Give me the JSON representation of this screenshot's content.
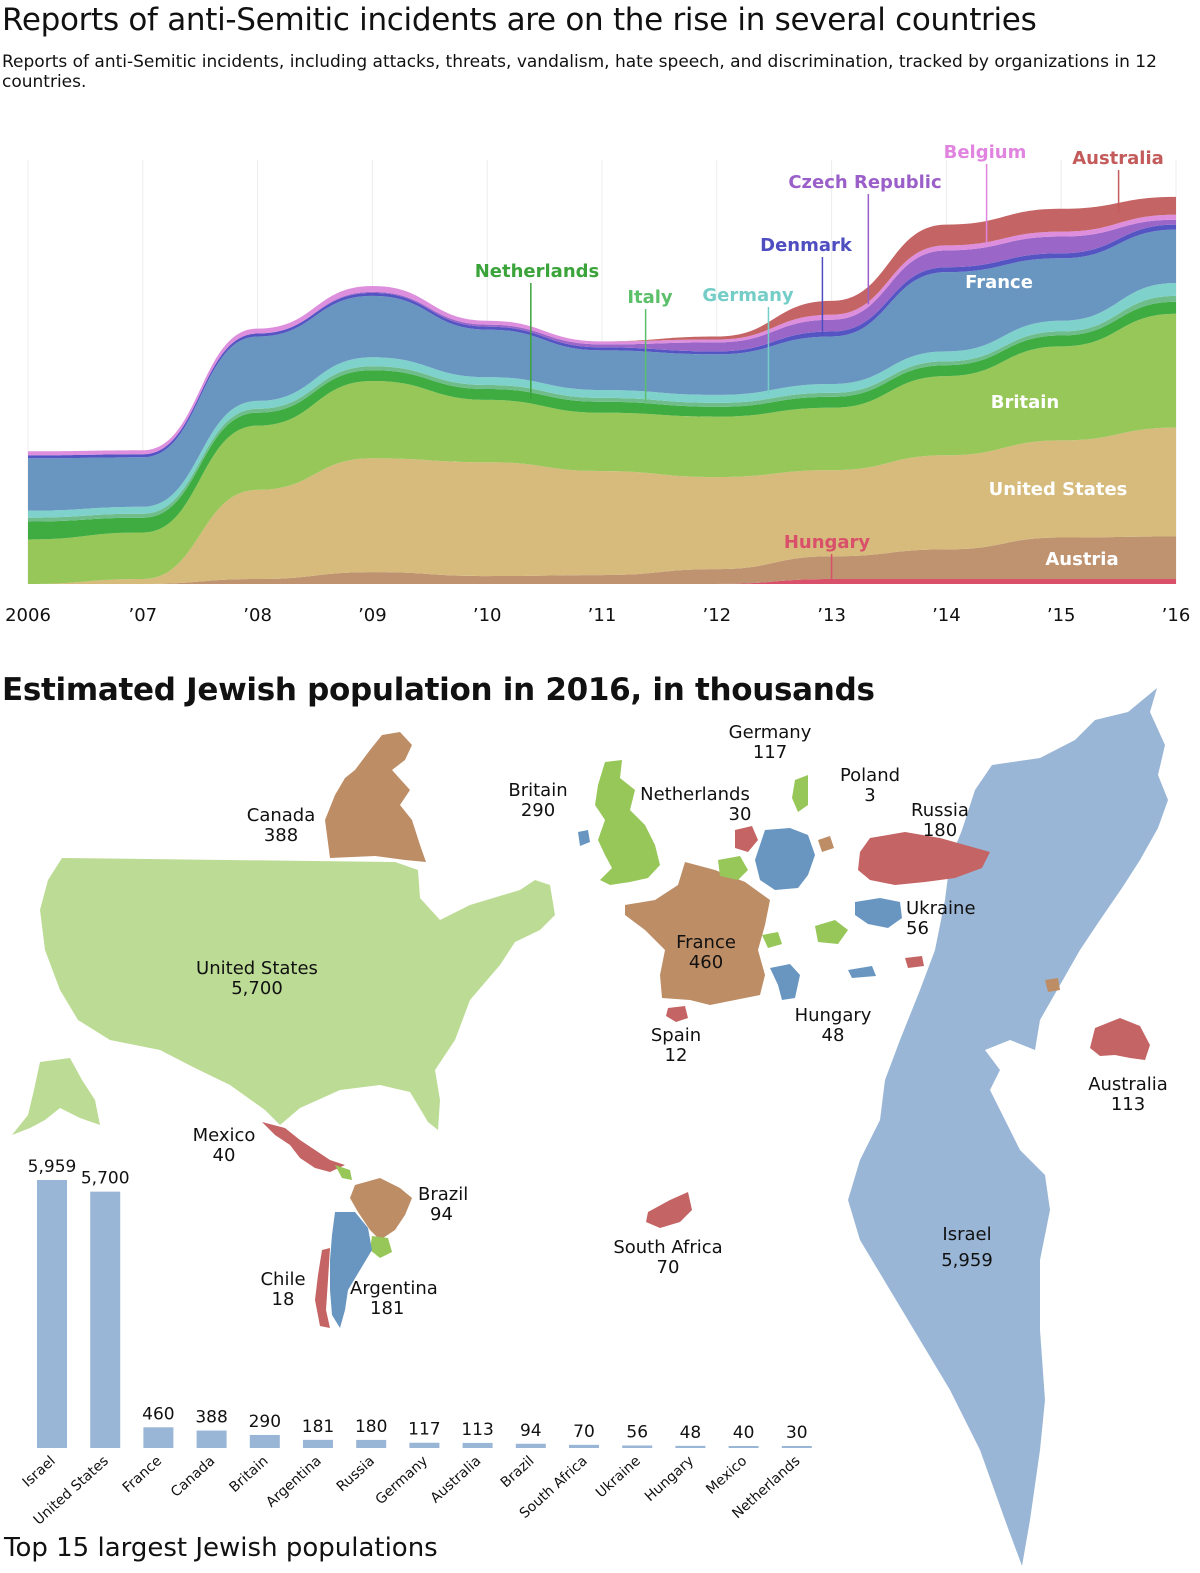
{
  "stream_chart": {
    "title": "Reports of anti-Semitic incidents are on the rise in several countries",
    "subtitle": "Reports of anti-Semitic incidents, including attacks, threats, vandalism, hate speech, and discrimination, tracked by organizations in 12 countries.",
    "x_tick_labels": [
      "2006",
      "’07",
      "’08",
      "’09",
      "’10",
      "’11",
      "’12",
      "’13",
      "’14",
      "’15",
      "’16"
    ]
  },
  "map": {
    "title": "Estimated Jewish population in 2016, in thousands"
  },
  "bar_chart": {
    "footer": "Top 15 largest Jewish populations"
  },
  "chart_data": [
    {
      "type": "area",
      "title": "Reports of anti-Semitic incidents are on the rise in several countries",
      "stacked": true,
      "y_units": "relative (no y axis shown)",
      "x": [
        2006,
        2007,
        2008,
        2009,
        2010,
        2011,
        2012,
        2013,
        2014,
        2015,
        2016
      ],
      "series": [
        {
          "name": "Hungary",
          "color": "#d9506a",
          "values": [
            0,
            0,
            0,
            0,
            0,
            0,
            0,
            0.5,
            0.5,
            0.5,
            0.5
          ]
        },
        {
          "name": "Austria",
          "color": "#bf9370",
          "values": [
            0,
            0,
            0.5,
            1.2,
            0.8,
            0.9,
            1.5,
            2.3,
            3.0,
            4.2,
            4.3
          ]
        },
        {
          "name": "United States",
          "color": "#d6bb7c",
          "values": [
            0,
            0.5,
            9,
            11.5,
            11.5,
            10.5,
            9.3,
            8.7,
            9.5,
            9.8,
            11
          ]
        },
        {
          "name": "Britain",
          "color": "#97c759",
          "values": [
            4.5,
            4.7,
            6.5,
            7.8,
            6.3,
            5.9,
            6.1,
            6.3,
            8.0,
            9.5,
            11.5
          ]
        },
        {
          "name": "Netherlands",
          "color": "#3eac41",
          "values": [
            1.8,
            1.5,
            1.3,
            1.1,
            1.1,
            1.1,
            1.0,
            1.1,
            1.1,
            1.1,
            1.2
          ]
        },
        {
          "name": "Italy",
          "color": "#6ebd8b",
          "values": [
            0.4,
            0.4,
            0.4,
            0.4,
            0.4,
            0.4,
            0.4,
            0.4,
            0.4,
            0.4,
            0.6
          ]
        },
        {
          "name": "Germany",
          "color": "#7fd1cc",
          "values": [
            0.7,
            0.7,
            0.8,
            0.9,
            0.8,
            0.8,
            0.8,
            0.9,
            1.0,
            1.1,
            1.3
          ]
        },
        {
          "name": "France",
          "color": "#6896c1",
          "values": [
            5.3,
            5.0,
            6.5,
            6.2,
            4.8,
            4.0,
            4.1,
            4.8,
            8.0,
            6.3,
            5.4
          ]
        },
        {
          "name": "Denmark",
          "color": "#5454c3",
          "values": [
            0.3,
            0.3,
            0.3,
            0.3,
            0.3,
            0.3,
            0.3,
            0.5,
            0.5,
            0.5,
            0.5
          ]
        },
        {
          "name": "Czech Republic",
          "color": "#9a66c8",
          "values": [
            0,
            0,
            0,
            0.1,
            0.2,
            0.3,
            0.9,
            1.2,
            1.7,
            1.7,
            0.5
          ]
        },
        {
          "name": "Belgium",
          "color": "#dd8fdd",
          "values": [
            0.4,
            0.4,
            0.5,
            0.6,
            0.4,
            0.3,
            0.3,
            0.5,
            0.5,
            0.5,
            0.5
          ]
        },
        {
          "name": "Australia",
          "color": "#c56464",
          "values": [
            0,
            0,
            0,
            0,
            0,
            0,
            0.3,
            1.4,
            2.1,
            2.3,
            1.8
          ]
        }
      ],
      "labels": [
        {
          "series": "Hungary",
          "text": "Hungary",
          "color": "#d9506a"
        },
        {
          "series": "Austria",
          "text": "Austria",
          "color": "#ffffff"
        },
        {
          "series": "United States",
          "text": "United States",
          "color": "#ffffff"
        },
        {
          "series": "Britain",
          "text": "Britain",
          "color": "#ffffff"
        },
        {
          "series": "Netherlands",
          "text": "Netherlands",
          "color": "#3aa33a"
        },
        {
          "series": "Italy",
          "text": "Italy",
          "color": "#5cbf6a"
        },
        {
          "series": "Germany",
          "text": "Germany",
          "color": "#74cdc7"
        },
        {
          "series": "France",
          "text": "France",
          "color": "#ffffff"
        },
        {
          "series": "Denmark",
          "text": "Denmark",
          "color": "#4e4ec0"
        },
        {
          "series": "Czech Republic",
          "text": "Czech Republic",
          "color": "#9a5fc9"
        },
        {
          "series": "Belgium",
          "text": "Belgium",
          "color": "#e084e0"
        },
        {
          "series": "Australia",
          "text": "Australia",
          "color": "#c35b5b"
        }
      ]
    },
    {
      "type": "bar",
      "title": "Top 15 largest Jewish populations",
      "units": "thousands",
      "categories": [
        "Israel",
        "United States",
        "France",
        "Canada",
        "Britain",
        "Argentina",
        "Russia",
        "Germany",
        "Australia",
        "Brazil",
        "South Africa",
        "Ukraine",
        "Hungary",
        "Mexico",
        "Netherlands"
      ],
      "values": [
        5959,
        5700,
        460,
        388,
        290,
        181,
        180,
        117,
        113,
        94,
        70,
        56,
        48,
        40,
        30
      ],
      "value_labels": [
        "5,959",
        "5,700",
        "460",
        "388",
        "290",
        "181",
        "180",
        "117",
        "113",
        "94",
        "70",
        "56",
        "48",
        "40",
        "30"
      ],
      "color": "#9ab6d6",
      "ylim": [
        0,
        5959
      ]
    },
    {
      "type": "map",
      "title": "Estimated Jewish population in 2016, in thousands",
      "entries": [
        {
          "country": "Canada",
          "value": "388",
          "color": "#bd8d66"
        },
        {
          "country": "United States",
          "value": "5,700",
          "color": "#bcdb94"
        },
        {
          "country": "Mexico",
          "value": "40",
          "color": "#c56464"
        },
        {
          "country": "Brazil",
          "value": "94",
          "color": "#bd8d66"
        },
        {
          "country": "Chile",
          "value": "18",
          "color": "#c56464"
        },
        {
          "country": "Argentina",
          "value": "181",
          "color": "#6896c1"
        },
        {
          "country": "Britain",
          "value": "290",
          "color": "#97c759"
        },
        {
          "country": "Netherlands",
          "value": "30",
          "color": "#c56464"
        },
        {
          "country": "Germany",
          "value": "117",
          "color": "#6896c1"
        },
        {
          "country": "Poland",
          "value": "3",
          "color": "#97c759"
        },
        {
          "country": "Russia",
          "value": "180",
          "color": "#c56464"
        },
        {
          "country": "Ukraine",
          "value": "56",
          "color": "#6896c1"
        },
        {
          "country": "France",
          "value": "460",
          "color": "#bd8d66"
        },
        {
          "country": "Hungary",
          "value": "48",
          "color": "#97c759"
        },
        {
          "country": "Spain",
          "value": "12",
          "color": "#c56464"
        },
        {
          "country": "South Africa",
          "value": "70",
          "color": "#c56464"
        },
        {
          "country": "Australia",
          "value": "113",
          "color": "#c56464"
        },
        {
          "country": "Israel",
          "value": "5,959",
          "color": "#9ab6d6"
        }
      ]
    }
  ]
}
